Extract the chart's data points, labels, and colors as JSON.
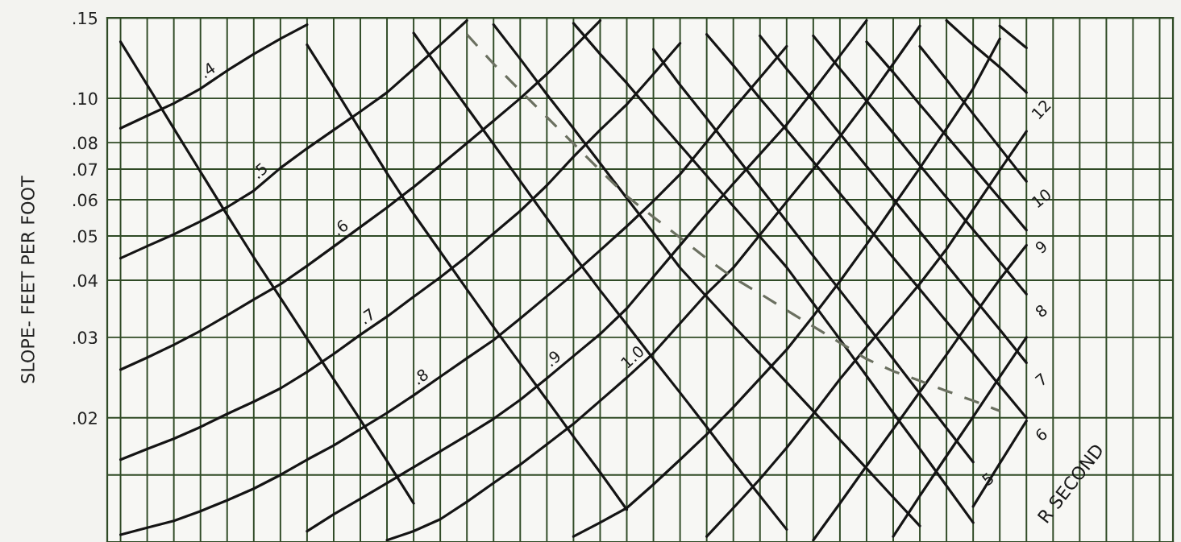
{
  "chart_data": {
    "type": "line",
    "ylabel": "SLOPE- FEET PER FOOT",
    "annotations": [
      "R SECOND"
    ],
    "log": "y",
    "grid": true,
    "tick_labels": "y",
    "line_style": "solid",
    "ylim": [
      0.0107,
      0.15
    ],
    "yticks": [
      {
        "value": 0.15,
        "label": ".15"
      },
      {
        "value": 0.1,
        "label": ".10"
      },
      {
        "value": 0.08,
        "label": ".08"
      },
      {
        "value": 0.07,
        "label": ".07"
      },
      {
        "value": 0.06,
        "label": ".06"
      },
      {
        "value": 0.05,
        "label": ".05"
      },
      {
        "value": 0.04,
        "label": ".04"
      },
      {
        "value": 0.03,
        "label": ".03"
      },
      {
        "value": 0.02,
        "label": ".02"
      },
      {
        "value": 0.015,
        "label": null
      }
    ],
    "categories": [
      null,
      null,
      null,
      null,
      null,
      null,
      null,
      null,
      null,
      null,
      null,
      null,
      null,
      null,
      null,
      null,
      null,
      null,
      null,
      null,
      null,
      null,
      null,
      null,
      null,
      null,
      null,
      null,
      null,
      null,
      null,
      null,
      null,
      null,
      null,
      null,
      null,
      null,
      null,
      null
    ],
    "series": [
      {
        "name": ".4",
        "color": "#141414",
        "values": [
          0.086,
          0.0916,
          0.0975,
          0.105,
          0.115,
          0.125,
          0.135,
          0.145,
          null,
          null,
          null,
          null,
          null,
          null,
          null,
          null,
          null,
          null,
          null,
          null,
          null,
          null,
          null,
          null,
          null,
          null,
          null,
          null,
          null,
          null,
          null,
          null,
          null,
          null,
          null,
          null,
          null,
          null,
          null,
          null
        ]
      },
      {
        "name": ".5",
        "color": "#141414",
        "values": [
          0.0447,
          0.0475,
          0.0504,
          0.0538,
          0.0578,
          0.0628,
          0.0704,
          0.0777,
          0.0853,
          0.0936,
          0.103,
          0.116,
          0.131,
          0.148,
          null,
          null,
          null,
          null,
          null,
          null,
          null,
          null,
          null,
          null,
          null,
          null,
          null,
          null,
          null,
          null,
          null,
          null,
          null,
          null,
          null,
          null,
          null,
          null,
          null,
          null
        ]
      },
      {
        "name": ".6",
        "color": "#141414",
        "values": [
          0.0255,
          0.0271,
          0.0289,
          0.031,
          0.0335,
          0.0363,
          0.0392,
          0.043,
          0.0474,
          0.0523,
          0.0577,
          0.064,
          0.0714,
          0.0798,
          0.0893,
          0.1,
          0.113,
          0.129,
          0.148,
          null,
          null,
          null,
          null,
          null,
          null,
          null,
          null,
          null,
          null,
          null,
          null,
          null,
          null,
          null,
          null,
          null,
          null,
          null,
          null,
          null
        ]
      },
      {
        "name": ".7",
        "color": "#141414",
        "values": [
          0.0162,
          0.0171,
          0.018,
          0.0191,
          0.0204,
          0.0217,
          0.0232,
          0.0252,
          0.0276,
          0.0304,
          0.0333,
          0.0368,
          0.0406,
          0.0451,
          0.0506,
          0.0567,
          0.0645,
          0.0745,
          0.0853,
          0.097,
          0.113,
          0.132,
          null,
          null,
          null,
          null,
          null,
          null,
          null,
          null,
          null,
          null,
          null,
          null,
          null,
          null,
          null,
          null,
          null,
          null
        ]
      },
      {
        "name": ".8",
        "color": "#141414",
        "values": [
          0.0111,
          0.0115,
          0.0119,
          0.0125,
          0.0132,
          0.014,
          0.015,
          0.0162,
          0.0174,
          0.0189,
          0.0205,
          0.0224,
          0.0246,
          0.027,
          0.0296,
          0.033,
          0.0369,
          0.0413,
          0.0465,
          0.0525,
          0.0596,
          0.0682,
          0.0803,
          0.0948,
          0.111,
          0.13,
          null,
          null,
          null,
          null,
          null,
          null,
          null,
          null,
          null,
          null,
          null,
          null,
          null,
          null
        ]
      },
      {
        "name": ".9",
        "color": "#141414",
        "values": [
          null,
          null,
          null,
          null,
          null,
          null,
          null,
          0.0113,
          0.0123,
          0.0133,
          0.0144,
          0.0156,
          0.0169,
          0.0183,
          0.0199,
          0.0219,
          0.0244,
          0.0273,
          0.0305,
          0.0347,
          0.0407,
          0.0477,
          0.0559,
          0.0651,
          0.0755,
          0.0876,
          0.104,
          0.124,
          0.148,
          null,
          null,
          null,
          null,
          null,
          null,
          null,
          null,
          null,
          null,
          null
        ]
      },
      {
        "name": "1.0",
        "color": "#141414",
        "values": [
          null,
          null,
          null,
          null,
          null,
          null,
          null,
          null,
          null,
          null,
          0.0108,
          0.0113,
          0.012,
          0.0131,
          0.0144,
          0.0158,
          0.0175,
          0.0194,
          0.0218,
          0.0245,
          0.0277,
          0.0322,
          0.0374,
          0.0426,
          0.0503,
          0.0594,
          0.07,
          0.0825,
          0.0985,
          0.119,
          0.144,
          null,
          null,
          null,
          null,
          null,
          null,
          null,
          null,
          null
        ]
      },
      {
        "color": "#141414",
        "values": [
          null,
          null,
          null,
          null,
          null,
          null,
          null,
          null,
          null,
          null,
          null,
          null,
          null,
          null,
          null,
          null,
          null,
          0.011,
          0.0118,
          0.0127,
          0.0143,
          0.0162,
          0.0184,
          0.0211,
          0.0244,
          0.0282,
          0.0334,
          0.0398,
          0.0479,
          0.0581,
          0.0704,
          0.0859,
          0.105,
          0.135,
          null,
          null,
          null,
          null,
          null,
          null
        ]
      },
      {
        "color": "#141414",
        "values": [
          null,
          null,
          null,
          null,
          null,
          null,
          null,
          null,
          null,
          null,
          null,
          null,
          null,
          null,
          null,
          null,
          null,
          null,
          null,
          null,
          null,
          null,
          0.011,
          0.0127,
          0.0147,
          0.0172,
          0.0204,
          0.0243,
          0.0286,
          0.0335,
          0.0393,
          0.0468,
          0.0571,
          0.0696,
          0.0847,
          null,
          null,
          null,
          null,
          null
        ]
      },
      {
        "color": "#141414",
        "values": [
          null,
          null,
          null,
          null,
          null,
          null,
          null,
          null,
          null,
          null,
          null,
          null,
          null,
          null,
          null,
          null,
          null,
          null,
          null,
          null,
          null,
          null,
          null,
          null,
          null,
          null,
          0.0108,
          0.013,
          0.0157,
          0.0189,
          0.0228,
          0.0275,
          0.0333,
          0.0402,
          0.0477,
          null,
          null,
          null,
          null,
          null
        ]
      },
      {
        "color": "#141414",
        "values": [
          null,
          null,
          null,
          null,
          null,
          null,
          null,
          null,
          null,
          null,
          null,
          null,
          null,
          null,
          null,
          null,
          null,
          null,
          null,
          null,
          null,
          null,
          null,
          null,
          null,
          null,
          null,
          null,
          null,
          0.011,
          0.0135,
          0.0165,
          0.0201,
          0.0246,
          0.03,
          null,
          null,
          null,
          null,
          null
        ]
      },
      {
        "color": "#141414",
        "values": [
          null,
          null,
          null,
          null,
          null,
          null,
          null,
          null,
          null,
          null,
          null,
          null,
          null,
          null,
          null,
          null,
          null,
          null,
          null,
          null,
          null,
          null,
          null,
          null,
          null,
          null,
          null,
          null,
          null,
          null,
          null,
          null,
          0.0128,
          0.0159,
          0.0197,
          null,
          null,
          null,
          null,
          null
        ]
      },
      {
        "color": "#141414",
        "values": [
          0.133,
          0.107,
          0.0859,
          0.0691,
          0.0556,
          0.0449,
          0.0366,
          0.0298,
          0.0243,
          0.0198,
          0.0161,
          0.013,
          null,
          null,
          null,
          null,
          null,
          null,
          null,
          null,
          null,
          null,
          null,
          null,
          null,
          null,
          null,
          null,
          null,
          null,
          null,
          null,
          null,
          null,
          null,
          null,
          null,
          null,
          null,
          null
        ]
      },
      {
        "color": "#141414",
        "values": [
          null,
          null,
          null,
          null,
          null,
          null,
          null,
          0.131,
          0.106,
          0.0851,
          0.0686,
          0.0559,
          0.0462,
          0.0382,
          0.0316,
          0.0263,
          0.0219,
          0.0182,
          0.0152,
          0.0126,
          null,
          null,
          null,
          null,
          null,
          null,
          null,
          null,
          null,
          null,
          null,
          null,
          null,
          null,
          null,
          null,
          null,
          null,
          null,
          null
        ]
      },
      {
        "color": "#141414",
        "values": [
          null,
          null,
          null,
          null,
          null,
          null,
          null,
          null,
          null,
          null,
          null,
          0.139,
          0.115,
          0.0956,
          0.0794,
          0.0659,
          0.0547,
          0.0454,
          0.038,
          0.032,
          0.0269,
          0.0227,
          0.0191,
          0.016,
          0.0135,
          0.0114,
          null,
          null,
          null,
          null,
          null,
          null,
          null,
          null,
          null,
          null,
          null,
          null,
          null,
          null
        ]
      },
      {
        "color": "#141414",
        "values": [
          null,
          null,
          null,
          null,
          null,
          null,
          null,
          null,
          null,
          null,
          null,
          null,
          null,
          null,
          0.145,
          0.122,
          0.102,
          0.0859,
          0.0721,
          0.0605,
          0.0508,
          0.0426,
          0.0368,
          0.0318,
          0.0276,
          0.0239,
          0.0207,
          0.0179,
          0.0155,
          0.0134,
          0.0116,
          null,
          null,
          null,
          null,
          null,
          null,
          null,
          null,
          null
        ]
      },
      {
        "color": "#141414",
        "values": [
          null,
          null,
          null,
          null,
          null,
          null,
          null,
          null,
          null,
          null,
          null,
          null,
          null,
          null,
          null,
          null,
          null,
          0.146,
          0.125,
          0.108,
          0.0922,
          0.079,
          0.0677,
          0.0581,
          0.0498,
          0.0427,
          0.0356,
          0.0297,
          0.0247,
          0.0205,
          0.0171,
          0.0142,
          0.0118,
          null,
          null,
          null,
          null,
          null,
          null,
          null
        ]
      },
      {
        "name": "5",
        "color": "#141414",
        "values": [
          null,
          null,
          null,
          null,
          null,
          null,
          null,
          null,
          null,
          null,
          null,
          null,
          null,
          null,
          null,
          null,
          null,
          null,
          null,
          null,
          0.128,
          0.107,
          0.0904,
          0.076,
          0.0639,
          0.0538,
          0.0452,
          0.038,
          0.032,
          0.0269,
          0.0226,
          0.019,
          0.016,
          null,
          null,
          null,
          null,
          null,
          null,
          null
        ]
      },
      {
        "name": "6",
        "color": "#141414",
        "values": [
          null,
          null,
          null,
          null,
          null,
          null,
          null,
          null,
          null,
          null,
          null,
          null,
          null,
          null,
          null,
          null,
          null,
          null,
          null,
          null,
          null,
          null,
          0.138,
          0.118,
          0.1,
          0.0853,
          0.0727,
          0.0619,
          0.0527,
          0.0448,
          0.0382,
          0.0325,
          0.0277,
          0.0235,
          0.02,
          null,
          null,
          null,
          null,
          null
        ]
      },
      {
        "name": "7",
        "color": "#141414",
        "values": [
          null,
          null,
          null,
          null,
          null,
          null,
          null,
          null,
          null,
          null,
          null,
          null,
          null,
          null,
          null,
          null,
          null,
          null,
          null,
          null,
          null,
          null,
          null,
          null,
          0.137,
          0.116,
          0.0988,
          0.0837,
          0.071,
          0.0602,
          0.0511,
          0.0433,
          0.0367,
          0.0312,
          0.0264,
          null,
          null,
          null,
          null,
          null
        ]
      },
      {
        "name": "8",
        "color": "#141414",
        "values": [
          null,
          null,
          null,
          null,
          null,
          null,
          null,
          null,
          null,
          null,
          null,
          null,
          null,
          null,
          null,
          null,
          null,
          null,
          null,
          null,
          null,
          null,
          null,
          null,
          null,
          null,
          0.137,
          0.116,
          0.0988,
          0.084,
          0.0714,
          0.0607,
          0.0516,
          0.0439,
          0.0373,
          null,
          null,
          null,
          null,
          null
        ]
      },
      {
        "name": "9",
        "color": "#141414",
        "values": [
          null,
          null,
          null,
          null,
          null,
          null,
          null,
          null,
          null,
          null,
          null,
          null,
          null,
          null,
          null,
          null,
          null,
          null,
          null,
          null,
          null,
          null,
          null,
          null,
          null,
          null,
          null,
          null,
          0.133,
          0.114,
          0.097,
          0.0828,
          0.0707,
          0.0604,
          0.0515,
          null,
          null,
          null,
          null,
          null
        ]
      },
      {
        "name": "10",
        "color": "#141414",
        "values": [
          null,
          null,
          null,
          null,
          null,
          null,
          null,
          null,
          null,
          null,
          null,
          null,
          null,
          null,
          null,
          null,
          null,
          null,
          null,
          null,
          null,
          null,
          null,
          null,
          null,
          null,
          null,
          null,
          null,
          null,
          0.13,
          0.11,
          0.0925,
          0.078,
          0.0658,
          null,
          null,
          null,
          null,
          null
        ]
      },
      {
        "name": "12",
        "color": "#141414",
        "values": [
          null,
          null,
          null,
          null,
          null,
          null,
          null,
          null,
          null,
          null,
          null,
          null,
          null,
          null,
          null,
          null,
          null,
          null,
          null,
          null,
          null,
          null,
          null,
          null,
          null,
          null,
          null,
          null,
          null,
          null,
          null,
          0.148,
          0.131,
          0.117,
          0.103,
          null,
          null,
          null,
          null,
          null
        ]
      },
      {
        "color": "#141414",
        "values": [
          null,
          null,
          null,
          null,
          null,
          null,
          null,
          null,
          null,
          null,
          null,
          null,
          null,
          null,
          null,
          null,
          null,
          null,
          null,
          null,
          null,
          null,
          null,
          null,
          null,
          null,
          null,
          null,
          null,
          null,
          null,
          null,
          null,
          0.144,
          0.129,
          null,
          null,
          null,
          null,
          null
        ]
      },
      {
        "color": "#6b7060",
        "line_style": "dashed",
        "values": [
          null,
          null,
          null,
          null,
          null,
          null,
          null,
          null,
          null,
          null,
          null,
          null,
          null,
          0.138,
          0.119,
          0.104,
          0.091,
          0.0796,
          0.0696,
          0.0611,
          0.055,
          0.0496,
          0.0446,
          0.0405,
          0.0374,
          0.0344,
          0.0317,
          0.0292,
          0.0269,
          0.0253,
          0.0241,
          0.0229,
          0.0218,
          0.0207,
          null,
          null,
          null,
          null,
          null,
          null
        ]
      }
    ]
  }
}
